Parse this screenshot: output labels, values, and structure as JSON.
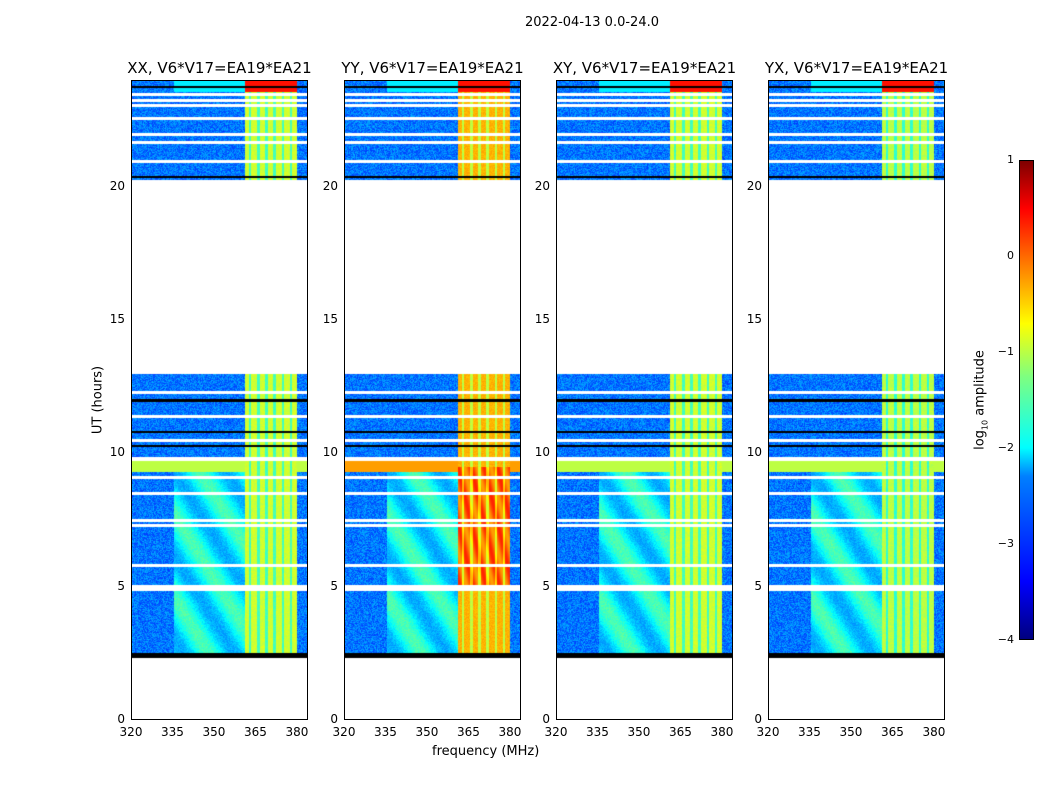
{
  "chart_data": {
    "type": "heatmap",
    "title": "2022-04-13 0.0-24.0",
    "xlabel": "frequency (MHz)",
    "ylabel": "UT (hours)",
    "xlim": [
      320,
      384
    ],
    "ylim": [
      0,
      24
    ],
    "xticks": [
      "320",
      "335",
      "350",
      "365",
      "380"
    ],
    "xtick_values": [
      320,
      335,
      350,
      365,
      380
    ],
    "yticks": [
      "0",
      "5",
      "10",
      "15",
      "20"
    ],
    "ytick_values": [
      0,
      5,
      10,
      15,
      20
    ],
    "panels": [
      {
        "title": "XX, V6*V17=EA19*EA21",
        "band_level": -0.9,
        "strong": false
      },
      {
        "title": "YY, V6*V17=EA19*EA21",
        "band_level": -0.3,
        "strong": true
      },
      {
        "title": "XY, V6*V17=EA19*EA21",
        "band_level": -0.9,
        "strong": false
      },
      {
        "title": "YX, V6*V17=EA19*EA21",
        "band_level": -1.0,
        "strong": false
      }
    ],
    "data_segments_hours": [
      [
        2.3,
        13.0
      ],
      [
        20.3,
        24.0
      ]
    ],
    "flagged_band_hours": [
      2.3,
      2.5
    ],
    "rfi_band_mhz": [
      361,
      380
    ],
    "colorbar": {
      "label": "log10 amplitude",
      "ticks": [
        "1",
        "0",
        "−1",
        "−2",
        "−3",
        "−4"
      ],
      "tick_values": [
        1,
        0,
        -1,
        -2,
        -3,
        -4
      ],
      "range": [
        -4,
        1
      ],
      "colormap": "jet"
    }
  }
}
